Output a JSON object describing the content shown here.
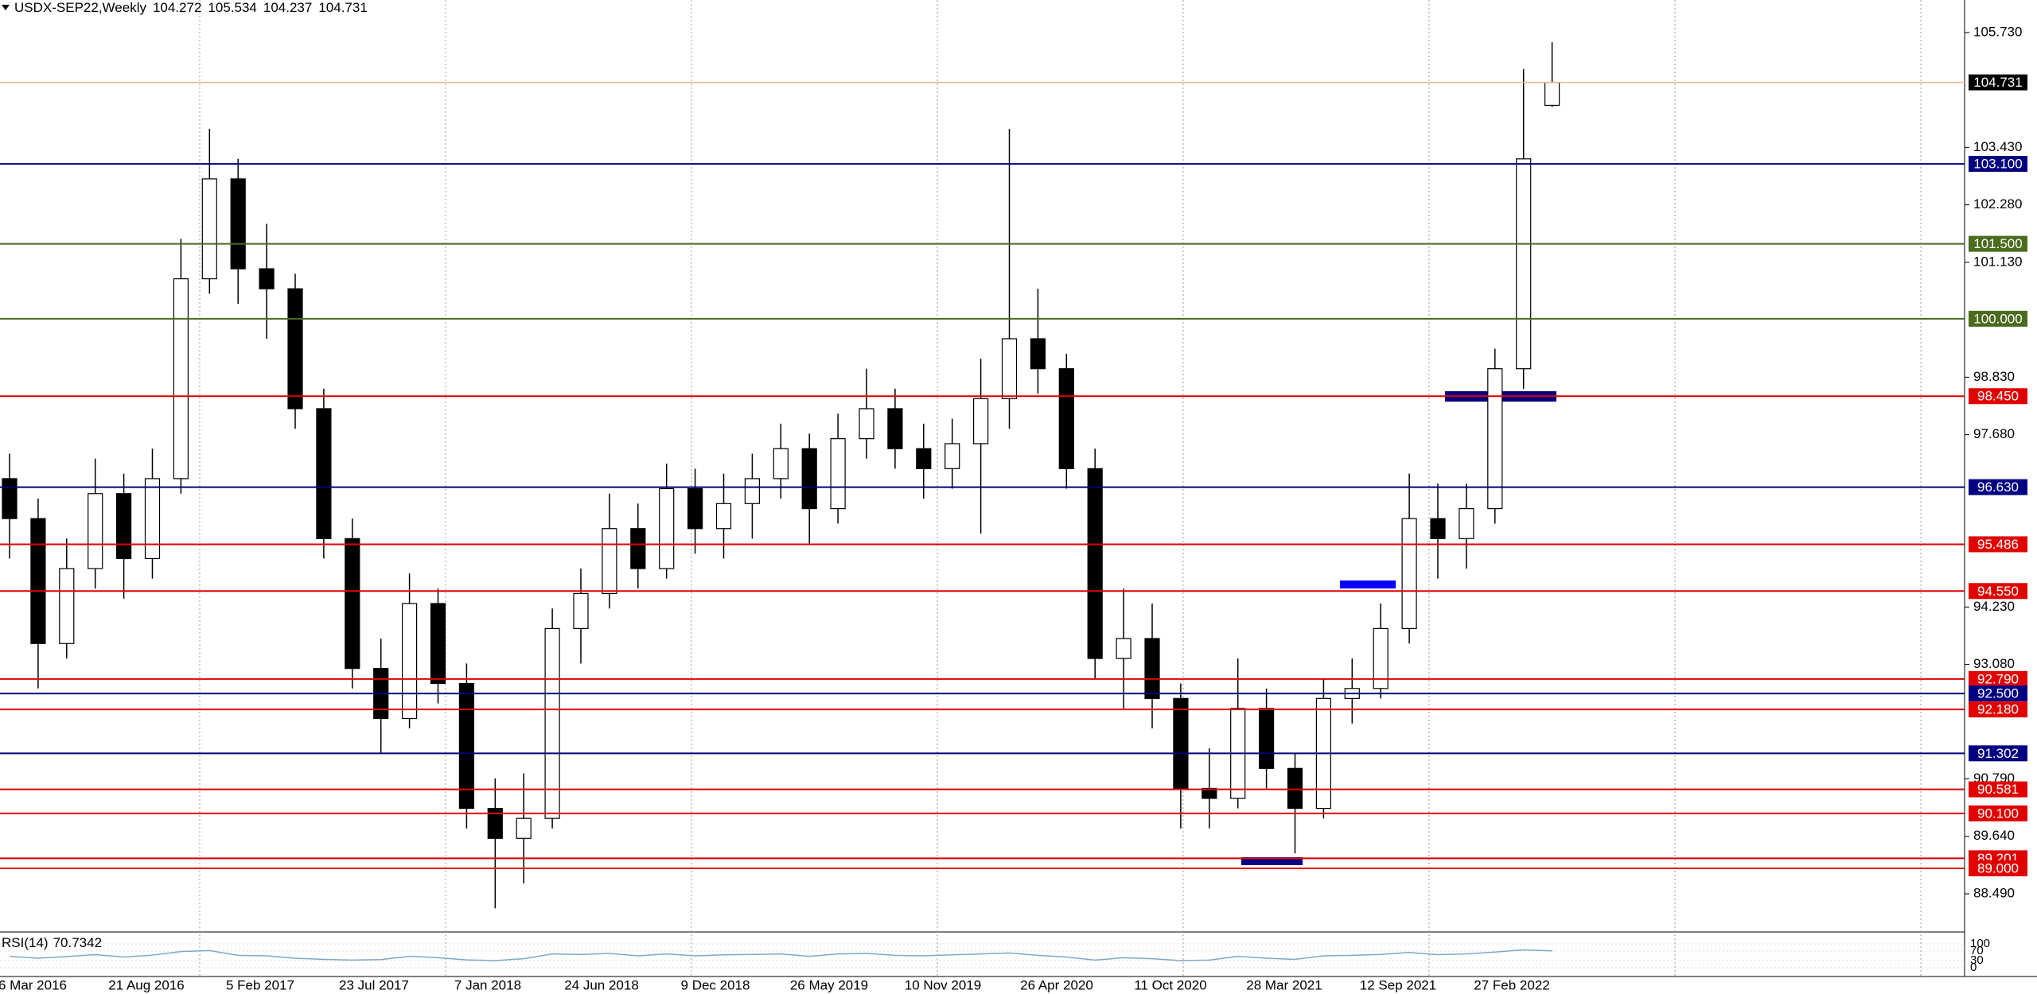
{
  "chart_data": {
    "type": "candlestick",
    "title": "USDX-SEP22,Weekly",
    "ylim": [
      87.79,
      106.38
    ],
    "yticks": [
      {
        "value": 105.73,
        "label": "105.730"
      },
      {
        "value": 103.43,
        "label": "103.430"
      },
      {
        "value": 102.28,
        "label": "102.280"
      },
      {
        "value": 101.13,
        "label": "101.130"
      },
      {
        "value": 98.83,
        "label": "98.830"
      },
      {
        "value": 97.68,
        "label": "97.680"
      },
      {
        "value": 94.23,
        "label": "94.230"
      },
      {
        "value": 93.08,
        "label": "93.080"
      },
      {
        "value": 90.79,
        "label": "90.790"
      },
      {
        "value": 89.64,
        "label": "89.640"
      },
      {
        "value": 88.49,
        "label": "88.490"
      }
    ],
    "categories": [
      "6 Mar 2016",
      "21 Aug 2016",
      "5 Feb 2017",
      "23 Jul 2017",
      "7 Jan 2018",
      "24 Jun 2018",
      "9 Dec 2018",
      "26 May 2019",
      "10 Nov 2019",
      "26 Apr 2020",
      "11 Oct 2020",
      "28 Mar 2021",
      "12 Sep 2021",
      "27 Feb 2022"
    ],
    "bull_color": "#ffffff",
    "bear_color": "#000000",
    "last_line_color": "#f2b48c",
    "candles": [
      {
        "open": 96.8,
        "high": 97.3,
        "low": 95.2,
        "close": 96.0
      },
      {
        "open": 96.0,
        "high": 96.4,
        "low": 92.6,
        "close": 93.5
      },
      {
        "open": 93.5,
        "high": 95.6,
        "low": 93.2,
        "close": 95.0
      },
      {
        "open": 95.0,
        "high": 97.2,
        "low": 94.6,
        "close": 96.5
      },
      {
        "open": 96.5,
        "high": 96.9,
        "low": 94.4,
        "close": 95.2
      },
      {
        "open": 95.2,
        "high": 97.4,
        "low": 94.8,
        "close": 96.8
      },
      {
        "open": 96.8,
        "high": 101.6,
        "low": 96.5,
        "close": 100.8
      },
      {
        "open": 100.8,
        "high": 103.8,
        "low": 100.5,
        "close": 102.8
      },
      {
        "open": 102.8,
        "high": 103.2,
        "low": 100.3,
        "close": 101.0
      },
      {
        "open": 101.0,
        "high": 101.9,
        "low": 99.6,
        "close": 100.6
      },
      {
        "open": 100.6,
        "high": 100.9,
        "low": 97.8,
        "close": 98.2
      },
      {
        "open": 98.2,
        "high": 98.6,
        "low": 95.2,
        "close": 95.6
      },
      {
        "open": 95.6,
        "high": 96.0,
        "low": 92.6,
        "close": 93.0
      },
      {
        "open": 93.0,
        "high": 93.6,
        "low": 91.3,
        "close": 92.0
      },
      {
        "open": 92.0,
        "high": 94.9,
        "low": 91.8,
        "close": 94.3
      },
      {
        "open": 94.3,
        "high": 94.6,
        "low": 92.3,
        "close": 92.7
      },
      {
        "open": 92.7,
        "high": 93.1,
        "low": 89.8,
        "close": 90.2
      },
      {
        "open": 90.2,
        "high": 90.8,
        "low": 88.2,
        "close": 89.6
      },
      {
        "open": 89.6,
        "high": 90.9,
        "low": 88.7,
        "close": 90.0
      },
      {
        "open": 90.0,
        "high": 94.2,
        "low": 89.8,
        "close": 93.8
      },
      {
        "open": 93.8,
        "high": 95.0,
        "low": 93.1,
        "close": 94.5
      },
      {
        "open": 94.5,
        "high": 96.5,
        "low": 94.2,
        "close": 95.8
      },
      {
        "open": 95.8,
        "high": 96.3,
        "low": 94.6,
        "close": 95.0
      },
      {
        "open": 95.0,
        "high": 97.1,
        "low": 94.8,
        "close": 96.6
      },
      {
        "open": 96.6,
        "high": 97.0,
        "low": 95.3,
        "close": 95.8
      },
      {
        "open": 95.8,
        "high": 96.9,
        "low": 95.2,
        "close": 96.3
      },
      {
        "open": 96.3,
        "high": 97.3,
        "low": 95.6,
        "close": 96.8
      },
      {
        "open": 96.8,
        "high": 97.9,
        "low": 96.4,
        "close": 97.4
      },
      {
        "open": 97.4,
        "high": 97.7,
        "low": 95.5,
        "close": 96.2
      },
      {
        "open": 96.2,
        "high": 98.1,
        "low": 95.9,
        "close": 97.6
      },
      {
        "open": 97.6,
        "high": 99.0,
        "low": 97.2,
        "close": 98.2
      },
      {
        "open": 98.2,
        "high": 98.6,
        "low": 97.0,
        "close": 97.4
      },
      {
        "open": 97.4,
        "high": 97.9,
        "low": 96.4,
        "close": 97.0
      },
      {
        "open": 97.0,
        "high": 98.0,
        "low": 96.6,
        "close": 97.5
      },
      {
        "open": 97.5,
        "high": 99.2,
        "low": 95.7,
        "close": 98.4
      },
      {
        "open": 98.4,
        "high": 103.8,
        "low": 97.8,
        "close": 99.6
      },
      {
        "open": 99.6,
        "high": 100.6,
        "low": 98.5,
        "close": 99.0
      },
      {
        "open": 99.0,
        "high": 99.3,
        "low": 96.6,
        "close": 97.0
      },
      {
        "open": 97.0,
        "high": 97.4,
        "low": 92.8,
        "close": 93.2
      },
      {
        "open": 93.2,
        "high": 94.6,
        "low": 92.2,
        "close": 93.6
      },
      {
        "open": 93.6,
        "high": 94.3,
        "low": 91.8,
        "close": 92.4
      },
      {
        "open": 92.4,
        "high": 92.7,
        "low": 89.8,
        "close": 90.6
      },
      {
        "open": 90.6,
        "high": 91.4,
        "low": 89.8,
        "close": 90.4
      },
      {
        "open": 90.4,
        "high": 93.2,
        "low": 90.2,
        "close": 92.2
      },
      {
        "open": 92.2,
        "high": 92.6,
        "low": 90.6,
        "close": 91.0
      },
      {
        "open": 91.0,
        "high": 91.3,
        "low": 89.3,
        "close": 90.2
      },
      {
        "open": 90.2,
        "high": 92.8,
        "low": 90.0,
        "close": 92.4
      },
      {
        "open": 92.4,
        "high": 93.2,
        "low": 91.9,
        "close": 92.6
      },
      {
        "open": 92.6,
        "high": 94.3,
        "low": 92.4,
        "close": 93.8
      },
      {
        "open": 93.8,
        "high": 96.9,
        "low": 93.5,
        "close": 96.0
      },
      {
        "open": 96.0,
        "high": 96.7,
        "low": 94.8,
        "close": 95.6
      },
      {
        "open": 95.6,
        "high": 96.7,
        "low": 95.0,
        "close": 96.2
      },
      {
        "open": 96.2,
        "high": 99.4,
        "low": 95.9,
        "close": 99.0
      },
      {
        "open": 99.0,
        "high": 105.0,
        "low": 98.6,
        "close": 103.2
      },
      {
        "open": 104.272,
        "high": 105.534,
        "low": 104.237,
        "close": 104.731
      }
    ],
    "levels": [
      {
        "value": 103.1,
        "label": "103.100",
        "color": "#000080"
      },
      {
        "value": 101.5,
        "label": "101.500",
        "color": "#4b6b1e"
      },
      {
        "value": 100.0,
        "label": "100.000",
        "color": "#4b6b1e"
      },
      {
        "value": 98.45,
        "label": "98.450",
        "color": "#e00000"
      },
      {
        "value": 96.63,
        "label": "96.630",
        "color": "#000080"
      },
      {
        "value": 95.486,
        "label": "95.486",
        "color": "#e00000"
      },
      {
        "value": 94.55,
        "label": "94.550",
        "color": "#e00000"
      },
      {
        "value": 92.79,
        "label": "92.790",
        "color": "#e00000"
      },
      {
        "value": 92.5,
        "label": "92.500",
        "color": "#000080"
      },
      {
        "value": 92.18,
        "label": "92.180",
        "color": "#e00000"
      },
      {
        "value": 91.302,
        "label": "91.302",
        "color": "#000080"
      },
      {
        "value": 90.581,
        "label": "90.581",
        "color": "#e00000"
      },
      {
        "value": 90.1,
        "label": "90.100",
        "color": "#e00000"
      },
      {
        "value": 89.201,
        "label": "89.201",
        "color": "#e00000"
      },
      {
        "value": 89.0,
        "label": "89.000",
        "color": "#e00000"
      }
    ],
    "rsi": {
      "name": "RSI(14)",
      "color": "#7fa7c9",
      "ylim": [
        0,
        100
      ],
      "yticks": [
        100,
        70,
        30,
        0
      ],
      "values": [
        48,
        40,
        47,
        55,
        45,
        53,
        68,
        72,
        52,
        50,
        40,
        35,
        32,
        34,
        48,
        42,
        33,
        30,
        38,
        58,
        56,
        60,
        50,
        58,
        50,
        54,
        56,
        58,
        48,
        58,
        60,
        52,
        50,
        54,
        58,
        62,
        52,
        45,
        32,
        42,
        38,
        30,
        32,
        48,
        40,
        35,
        50,
        52,
        56,
        64,
        55,
        58,
        66,
        75,
        70.7342
      ]
    }
  }
}
